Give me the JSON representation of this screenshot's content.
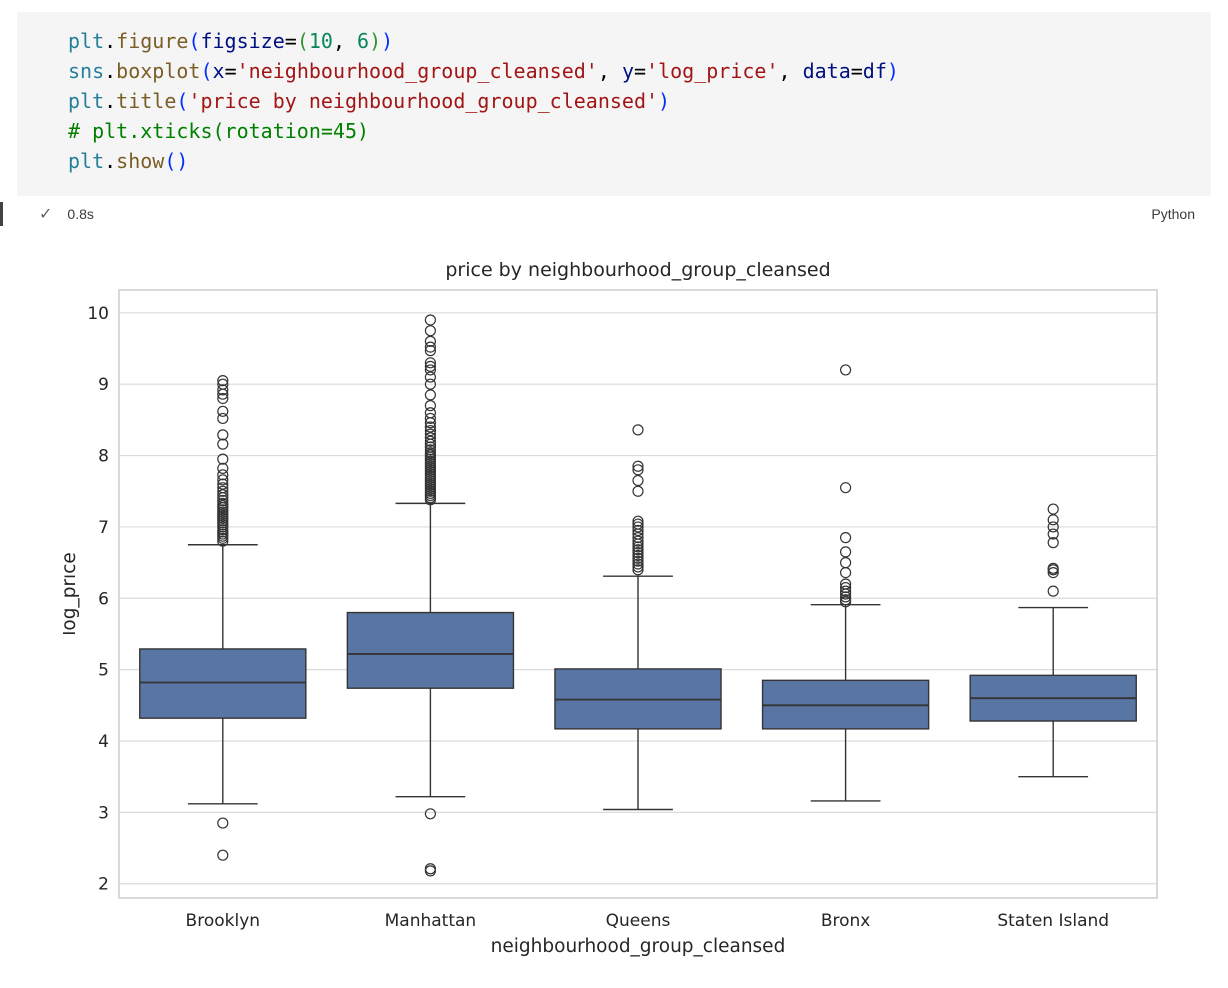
{
  "cell": {
    "language": "Python",
    "exec_time": "0.8s",
    "status_icon": "✓",
    "code_lines": [
      {
        "tokens": [
          {
            "t": "plt",
            "c": "mod"
          },
          {
            "t": ".",
            "c": "pln"
          },
          {
            "t": "figure",
            "c": "fn"
          },
          {
            "t": "(",
            "c": "b1"
          },
          {
            "t": "figsize",
            "c": "prm"
          },
          {
            "t": "=",
            "c": "pln"
          },
          {
            "t": "(",
            "c": "b2"
          },
          {
            "t": "10",
            "c": "num"
          },
          {
            "t": ", ",
            "c": "pln"
          },
          {
            "t": "6",
            "c": "num"
          },
          {
            "t": ")",
            "c": "b2"
          },
          {
            "t": ")",
            "c": "b1"
          }
        ]
      },
      {
        "tokens": [
          {
            "t": "sns",
            "c": "mod"
          },
          {
            "t": ".",
            "c": "pln"
          },
          {
            "t": "boxplot",
            "c": "fn"
          },
          {
            "t": "(",
            "c": "b1"
          },
          {
            "t": "x",
            "c": "prm"
          },
          {
            "t": "=",
            "c": "pln"
          },
          {
            "t": "'neighbourhood_group_cleansed'",
            "c": "str"
          },
          {
            "t": ", ",
            "c": "pln"
          },
          {
            "t": "y",
            "c": "prm"
          },
          {
            "t": "=",
            "c": "pln"
          },
          {
            "t": "'log_price'",
            "c": "str"
          },
          {
            "t": ", ",
            "c": "pln"
          },
          {
            "t": "data",
            "c": "prm"
          },
          {
            "t": "=",
            "c": "pln"
          },
          {
            "t": "df",
            "c": "prm"
          },
          {
            "t": ")",
            "c": "b1"
          }
        ]
      },
      {
        "tokens": [
          {
            "t": "plt",
            "c": "mod"
          },
          {
            "t": ".",
            "c": "pln"
          },
          {
            "t": "title",
            "c": "fn"
          },
          {
            "t": "(",
            "c": "b1"
          },
          {
            "t": "'price by neighbourhood_group_cleansed'",
            "c": "str"
          },
          {
            "t": ")",
            "c": "b1"
          }
        ]
      },
      {
        "tokens": [
          {
            "t": "# plt.xticks(rotation=45)",
            "c": "cmt"
          }
        ]
      },
      {
        "tokens": [
          {
            "t": "plt",
            "c": "mod"
          },
          {
            "t": ".",
            "c": "pln"
          },
          {
            "t": "show",
            "c": "fn"
          },
          {
            "t": "(",
            "c": "b1"
          },
          {
            "t": ")",
            "c": "b1"
          }
        ]
      }
    ]
  },
  "chart_data": {
    "type": "boxplot",
    "title": "price by neighbourhood_group_cleansed",
    "xlabel": "neighbourhood_group_cleansed",
    "ylabel": "log_price",
    "categories": [
      "Brooklyn",
      "Manhattan",
      "Queens",
      "Bronx",
      "Staten Island"
    ],
    "yticks": [
      2,
      3,
      4,
      5,
      6,
      7,
      8,
      9,
      10
    ],
    "ylim": [
      1.8,
      10.32
    ],
    "grid": true,
    "box_color": "#5975a4",
    "line_color": "#343434",
    "grid_color": "#dcdcdc",
    "spine_color": "#c9c9c9",
    "series": [
      {
        "name": "Brooklyn",
        "whislo": 3.12,
        "q1": 4.32,
        "med": 4.82,
        "q3": 5.29,
        "whishi": 6.75,
        "outliers_low": [
          2.85,
          2.4
        ],
        "outliers_high": [
          6.8,
          6.84,
          6.87,
          6.9,
          6.93,
          6.96,
          7.0,
          7.03,
          7.06,
          7.09,
          7.12,
          7.15,
          7.18,
          7.21,
          7.24,
          7.27,
          7.3,
          7.33,
          7.37,
          7.41,
          7.45,
          7.5,
          7.55,
          7.6,
          7.66,
          7.73,
          7.82,
          7.95,
          8.16,
          8.29,
          8.52,
          8.62,
          8.8,
          8.86,
          8.92,
          9.0,
          9.05
        ]
      },
      {
        "name": "Manhattan",
        "whislo": 3.22,
        "q1": 4.74,
        "med": 5.22,
        "q3": 5.8,
        "whishi": 7.33,
        "outliers_low": [
          2.98,
          2.21,
          2.18
        ],
        "outliers_high": [
          7.38,
          7.41,
          7.44,
          7.47,
          7.5,
          7.53,
          7.56,
          7.59,
          7.62,
          7.65,
          7.68,
          7.71,
          7.74,
          7.77,
          7.8,
          7.83,
          7.86,
          7.89,
          7.92,
          7.95,
          7.98,
          8.01,
          8.04,
          8.08,
          8.12,
          8.16,
          8.2,
          8.25,
          8.3,
          8.35,
          8.4,
          8.46,
          8.52,
          8.6,
          8.7,
          8.85,
          9.0,
          9.1,
          9.2,
          9.25,
          9.3,
          9.47,
          9.52,
          9.6,
          9.75,
          9.9
        ]
      },
      {
        "name": "Queens",
        "whislo": 3.04,
        "q1": 4.17,
        "med": 4.58,
        "q3": 5.01,
        "whishi": 6.31,
        "outliers_low": [],
        "outliers_high": [
          6.4,
          6.44,
          6.48,
          6.52,
          6.56,
          6.6,
          6.64,
          6.68,
          6.72,
          6.76,
          6.8,
          6.85,
          6.9,
          6.95,
          7.0,
          7.04,
          7.08,
          7.5,
          7.65,
          7.8,
          7.85,
          8.36
        ]
      },
      {
        "name": "Bronx",
        "whislo": 3.16,
        "q1": 4.17,
        "med": 4.5,
        "q3": 4.85,
        "whishi": 5.91,
        "outliers_low": [],
        "outliers_high": [
          5.95,
          5.98,
          6.02,
          6.06,
          6.1,
          6.15,
          6.2,
          6.36,
          6.5,
          6.65,
          6.85,
          7.55,
          9.2
        ]
      },
      {
        "name": "Staten Island",
        "whislo": 3.5,
        "q1": 4.28,
        "med": 4.6,
        "q3": 4.92,
        "whishi": 5.87,
        "outliers_low": [],
        "outliers_high": [
          6.1,
          6.36,
          6.4,
          6.42,
          6.78,
          6.9,
          7.0,
          7.1,
          7.25
        ]
      }
    ]
  }
}
